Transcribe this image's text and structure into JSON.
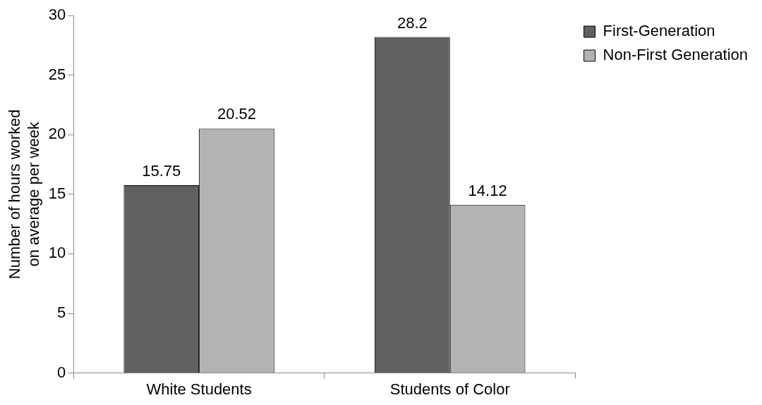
{
  "chart_data": {
    "type": "bar",
    "ylabel": "Number of hours worked on average per week",
    "categories": [
      "White Students",
      "Students of Color"
    ],
    "series": [
      {
        "name": "First-Generation",
        "color": "#606060",
        "values": [
          15.75,
          28.2
        ]
      },
      {
        "name": "Non-First Generation",
        "color": "#b3b3b3",
        "values": [
          20.52,
          14.12
        ]
      }
    ],
    "ylim": [
      0,
      30
    ],
    "yticks": [
      0,
      5,
      10,
      15,
      20,
      25,
      30
    ],
    "grid": false,
    "legend": "right",
    "data_labels": true
  }
}
